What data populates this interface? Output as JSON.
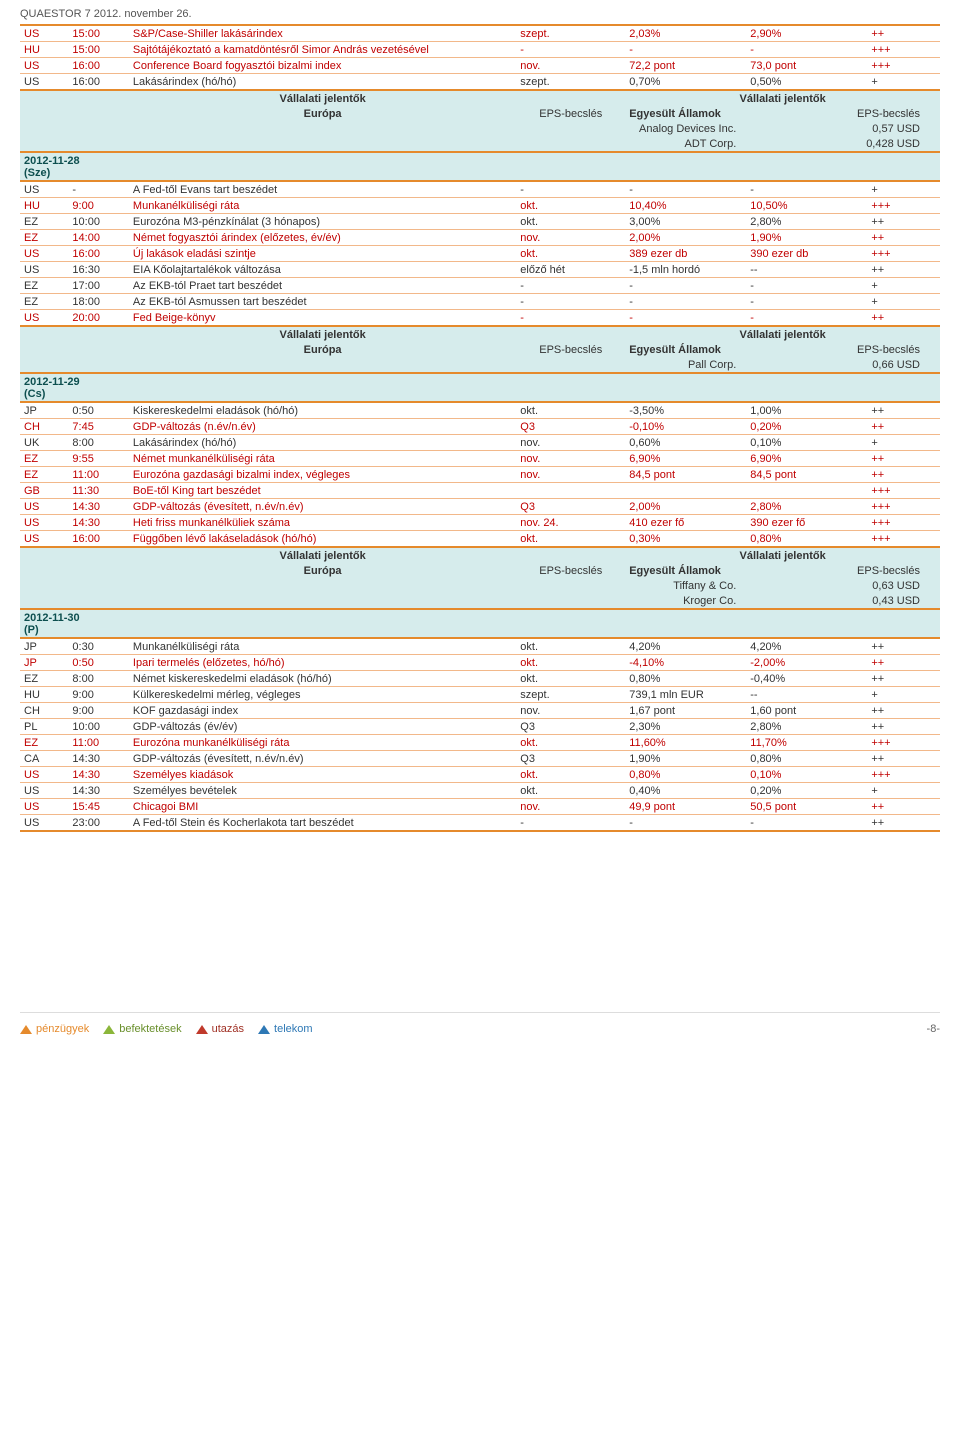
{
  "header": "QUAESTOR 7   2012. november 26.",
  "labels": {
    "earnings_header": "Vállalati jelentők",
    "europe": "Európa",
    "eps": "EPS-becslés",
    "usa": "Egyesült Államok",
    "eps2": "EPS-becslés"
  },
  "dates": {
    "d1": "2012-11-28\n(Sze)",
    "d2": "2012-11-29\n(Cs)",
    "d3": "2012-11-30\n(P)"
  },
  "rows_pre": [
    {
      "cc": "US",
      "t": "15:00",
      "d": "S&P/Case-Shiller lakásárindex",
      "p": "szept.",
      "v1": "2,03%",
      "v2": "2,90%",
      "imp": "++",
      "red": true
    },
    {
      "cc": "HU",
      "t": "15:00",
      "d": "Sajtótájékoztató a kamatdöntésről Simor András vezetésével",
      "p": "-",
      "v1": "-",
      "v2": "-",
      "imp": "+++",
      "red": true
    },
    {
      "cc": "US",
      "t": "16:00",
      "d": "Conference Board fogyasztói bizalmi index",
      "p": "nov.",
      "v1": "72,2 pont",
      "v2": "73,0 pont",
      "imp": "+++",
      "red": true
    },
    {
      "cc": "US",
      "t": "16:00",
      "d": "Lakásárindex (hó/hó)",
      "p": "szept.",
      "v1": "0,70%",
      "v2": "0,50%",
      "imp": "+",
      "red": false
    }
  ],
  "earn_pre": [
    {
      "name": "Analog Devices Inc.",
      "val": "0,57 USD"
    },
    {
      "name": "ADT Corp.",
      "val": "0,428 USD"
    }
  ],
  "rows_1": [
    {
      "cc": "US",
      "t": "-",
      "d": "A Fed-től Evans tart beszédet",
      "p": "-",
      "v1": "-",
      "v2": "-",
      "imp": "+",
      "red": false
    },
    {
      "cc": "HU",
      "t": "9:00",
      "d": "Munkanélküliségi ráta",
      "p": "okt.",
      "v1": "10,40%",
      "v2": "10,50%",
      "imp": "+++",
      "red": true
    },
    {
      "cc": "EZ",
      "t": "10:00",
      "d": "Eurozóna M3-pénzkínálat (3 hónapos)",
      "p": "okt.",
      "v1": "3,00%",
      "v2": "2,80%",
      "imp": "++",
      "red": false
    },
    {
      "cc": "EZ",
      "t": "14:00",
      "d": "Német fogyasztói árindex (előzetes, év/év)",
      "p": "nov.",
      "v1": "2,00%",
      "v2": "1,90%",
      "imp": "++",
      "red": true
    },
    {
      "cc": "US",
      "t": "16:00",
      "d": "Új lakások eladási szintje",
      "p": "okt.",
      "v1": "389 ezer db",
      "v2": "390 ezer db",
      "imp": "+++",
      "red": true
    },
    {
      "cc": "US",
      "t": "16:30",
      "d": "EIA Kőolajtartalékok változása",
      "p": "előző hét",
      "v1": "-1,5 mln hordó",
      "v2": "--",
      "imp": "++",
      "red": false
    },
    {
      "cc": "EZ",
      "t": "17:00",
      "d": "Az EKB-tól Praet tart beszédet",
      "p": "-",
      "v1": "-",
      "v2": "-",
      "imp": "+",
      "red": false
    },
    {
      "cc": "EZ",
      "t": "18:00",
      "d": "Az EKB-tól Asmussen tart beszédet",
      "p": "-",
      "v1": "-",
      "v2": "-",
      "imp": "+",
      "red": false
    },
    {
      "cc": "US",
      "t": "20:00",
      "d": "Fed Beige-könyv",
      "p": "-",
      "v1": "-",
      "v2": "-",
      "imp": "++",
      "red": true
    }
  ],
  "earn_1": [
    {
      "name": "Pall Corp.",
      "val": "0,66 USD"
    }
  ],
  "rows_2": [
    {
      "cc": "JP",
      "t": "0:50",
      "d": "Kiskereskedelmi eladások (hó/hó)",
      "p": "okt.",
      "v1": "-3,50%",
      "v2": "1,00%",
      "imp": "++",
      "red": false
    },
    {
      "cc": "CH",
      "t": "7:45",
      "d": "GDP-változás (n.év/n.év)",
      "p": "Q3",
      "v1": "-0,10%",
      "v2": "0,20%",
      "imp": "++",
      "red": true
    },
    {
      "cc": "UK",
      "t": "8:00",
      "d": "Lakásárindex (hó/hó)",
      "p": "nov.",
      "v1": "0,60%",
      "v2": "0,10%",
      "imp": "+",
      "red": false
    },
    {
      "cc": "EZ",
      "t": "9:55",
      "d": "Német munkanélküliségi ráta",
      "p": "nov.",
      "v1": "6,90%",
      "v2": "6,90%",
      "imp": "++",
      "red": true
    },
    {
      "cc": "EZ",
      "t": "11:00",
      "d": "Eurozóna gazdasági bizalmi index, végleges",
      "p": "nov.",
      "v1": "84,5 pont",
      "v2": "84,5 pont",
      "imp": "++",
      "red": true
    },
    {
      "cc": "GB",
      "t": "11:30",
      "d": "BoE-től King tart beszédet",
      "p": "",
      "v1": "",
      "v2": "",
      "imp": "+++",
      "red": true
    },
    {
      "cc": "US",
      "t": "14:30",
      "d": "GDP-változás (évesített, n.év/n.év)",
      "p": "Q3",
      "v1": "2,00%",
      "v2": "2,80%",
      "imp": "+++",
      "red": true
    },
    {
      "cc": "US",
      "t": "14:30",
      "d": "Heti friss munkanélküliek száma",
      "p": "nov. 24.",
      "v1": "410 ezer fő",
      "v2": "390 ezer fő",
      "imp": "+++",
      "red": true
    },
    {
      "cc": "US",
      "t": "16:00",
      "d": "Függőben lévő lakáseladások (hó/hó)",
      "p": "okt.",
      "v1": "0,30%",
      "v2": "0,80%",
      "imp": "+++",
      "red": true
    }
  ],
  "earn_2": [
    {
      "name": "Tiffany & Co.",
      "val": "0,63 USD"
    },
    {
      "name": "Kroger Co.",
      "val": "0,43 USD"
    }
  ],
  "rows_3": [
    {
      "cc": "JP",
      "t": "0:30",
      "d": "Munkanélküliségi ráta",
      "p": "okt.",
      "v1": "4,20%",
      "v2": "4,20%",
      "imp": "++",
      "red": false
    },
    {
      "cc": "JP",
      "t": "0:50",
      "d": "Ipari termelés (előzetes, hó/hó)",
      "p": "okt.",
      "v1": "-4,10%",
      "v2": "-2,00%",
      "imp": "++",
      "red": true
    },
    {
      "cc": "EZ",
      "t": "8:00",
      "d": "Német kiskereskedelmi eladások (hó/hó)",
      "p": "okt.",
      "v1": "0,80%",
      "v2": "-0,40%",
      "imp": "++",
      "red": false
    },
    {
      "cc": "HU",
      "t": "9:00",
      "d": "Külkereskedelmi mérleg, végleges",
      "p": "szept.",
      "v1": "739,1 mln EUR",
      "v2": "--",
      "imp": "+",
      "red": false
    },
    {
      "cc": "CH",
      "t": "9:00",
      "d": "KOF gazdasági index",
      "p": "nov.",
      "v1": "1,67 pont",
      "v2": "1,60 pont",
      "imp": "++",
      "red": false
    },
    {
      "cc": "PL",
      "t": "10:00",
      "d": "GDP-változás (év/év)",
      "p": "Q3",
      "v1": "2,30%",
      "v2": "2,80%",
      "imp": "++",
      "red": false
    },
    {
      "cc": "EZ",
      "t": "11:00",
      "d": "Eurozóna munkanélküliségi ráta",
      "p": "okt.",
      "v1": "11,60%",
      "v2": "11,70%",
      "imp": "+++",
      "red": true
    },
    {
      "cc": "CA",
      "t": "14:30",
      "d": "GDP-változás (évesített, n.év/n.év)",
      "p": "Q3",
      "v1": "1,90%",
      "v2": "0,80%",
      "imp": "++",
      "red": false
    },
    {
      "cc": "US",
      "t": "14:30",
      "d": "Személyes kiadások",
      "p": "okt.",
      "v1": "0,80%",
      "v2": "0,10%",
      "imp": "+++",
      "red": true
    },
    {
      "cc": "US",
      "t": "14:30",
      "d": "Személyes bevételek",
      "p": "okt.",
      "v1": "0,40%",
      "v2": "0,20%",
      "imp": "+",
      "red": false
    },
    {
      "cc": "US",
      "t": "15:45",
      "d": "Chicagoi BMI",
      "p": "nov.",
      "v1": "49,9 pont",
      "v2": "50,5 pont",
      "imp": "++",
      "red": true
    },
    {
      "cc": "US",
      "t": "23:00",
      "d": "A Fed-től Stein és Kocherlakota tart beszédet",
      "p": "-",
      "v1": "-",
      "v2": "-",
      "imp": "++",
      "red": false
    }
  ],
  "footer": {
    "t1": "pénzügyek",
    "t2": "befektetések",
    "t3": "utazás",
    "t4": "telekom",
    "page": "-8-"
  }
}
